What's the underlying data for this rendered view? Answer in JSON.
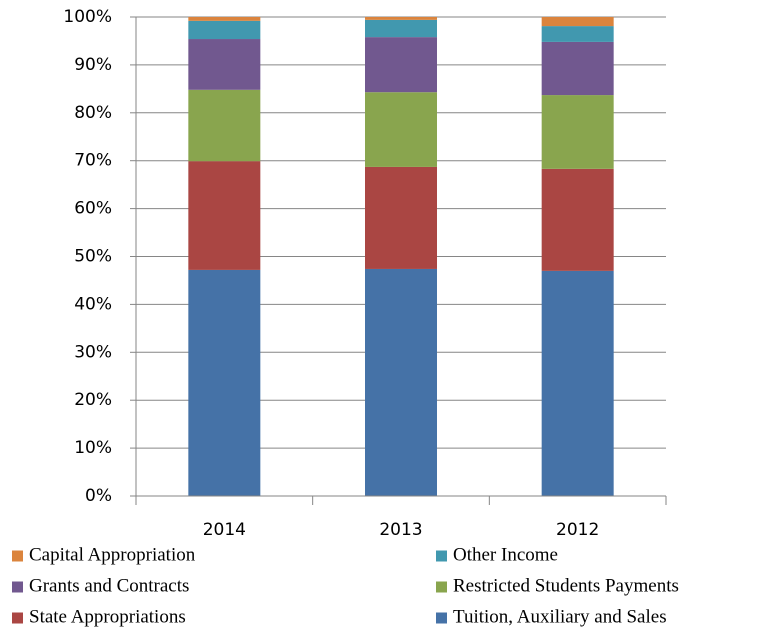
{
  "chart_data": {
    "type": "stacked-bar",
    "categories": [
      "2014",
      "2013",
      "2012"
    ],
    "series": [
      {
        "name": "Tuition, Auxiliary and Sales",
        "color": "#4572a7",
        "values": [
          47.2,
          47.4,
          47.0
        ]
      },
      {
        "name": "State Appropriations",
        "color": "#aa4643",
        "values": [
          22.7,
          21.3,
          21.3
        ]
      },
      {
        "name": "Restricted Students Payments",
        "color": "#89a54e",
        "values": [
          14.9,
          15.6,
          15.4
        ]
      },
      {
        "name": "Grants and Contracts",
        "color": "#71588f",
        "values": [
          10.6,
          11.5,
          11.1
        ]
      },
      {
        "name": "Other Income",
        "color": "#4198af",
        "values": [
          3.8,
          3.6,
          3.3
        ]
      },
      {
        "name": "Capital Appropriation",
        "color": "#db843d",
        "values": [
          0.8,
          0.6,
          1.9
        ]
      }
    ],
    "ylim": [
      0,
      100
    ],
    "yticks": [
      {
        "value": 0,
        "label": "0%"
      },
      {
        "value": 10,
        "label": "10%"
      },
      {
        "value": 20,
        "label": "20%"
      },
      {
        "value": 30,
        "label": "30%"
      },
      {
        "value": 40,
        "label": "40%"
      },
      {
        "value": 50,
        "label": "50%"
      },
      {
        "value": 60,
        "label": "60%"
      },
      {
        "value": 70,
        "label": "70%"
      },
      {
        "value": 80,
        "label": "80%"
      },
      {
        "value": 90,
        "label": "90%"
      },
      {
        "value": 100,
        "label": "100%"
      }
    ],
    "grid": true
  }
}
